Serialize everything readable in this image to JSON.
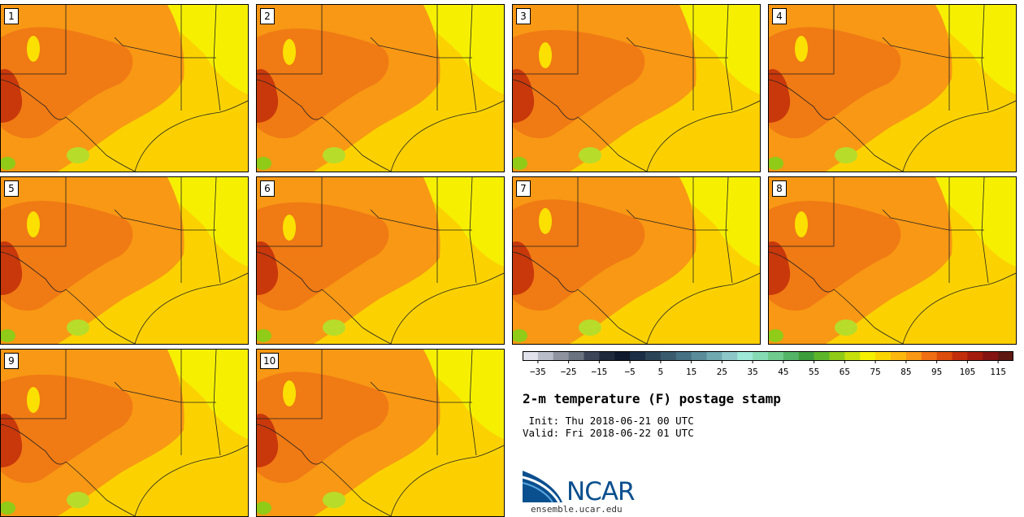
{
  "panels": [
    {
      "label": "1"
    },
    {
      "label": "2"
    },
    {
      "label": "3"
    },
    {
      "label": "4"
    },
    {
      "label": "5"
    },
    {
      "label": "6"
    },
    {
      "label": "7"
    },
    {
      "label": "8"
    },
    {
      "label": "9"
    },
    {
      "label": "10"
    }
  ],
  "colorbar": {
    "colors": [
      "#e2e2ec",
      "#b9bcc9",
      "#8f939f",
      "#6b7280",
      "#3c4658",
      "#1f2a3c",
      "#0f1a2e",
      "#1c2e45",
      "#2c4458",
      "#3a5a6d",
      "#467083",
      "#5a8c99",
      "#71a9b1",
      "#8ec7c7",
      "#9ee8d8",
      "#86dbb4",
      "#6fcc8e",
      "#53b467",
      "#3e9d3b",
      "#5db62a",
      "#8fcb17",
      "#c6e00e",
      "#f4f000",
      "#fbd500",
      "#fbb80e",
      "#f89814",
      "#f06f14",
      "#dc4d0c",
      "#c02e0b",
      "#a41c0d",
      "#841411",
      "#5e1812"
    ],
    "tick_labels": [
      "−35",
      "−25",
      "−15",
      "−5",
      "5",
      "15",
      "25",
      "35",
      "45",
      "55",
      "65",
      "75",
      "85",
      "95",
      "105",
      "115"
    ]
  },
  "title": "2-m temperature (F) postage stamp",
  "init_line": " Init: Thu 2018-06-21 00 UTC",
  "valid_line": "Valid: Fri 2018-06-22 01 UTC",
  "logo_text": "NCAR",
  "logo_url": "ensemble.ucar.edu"
}
